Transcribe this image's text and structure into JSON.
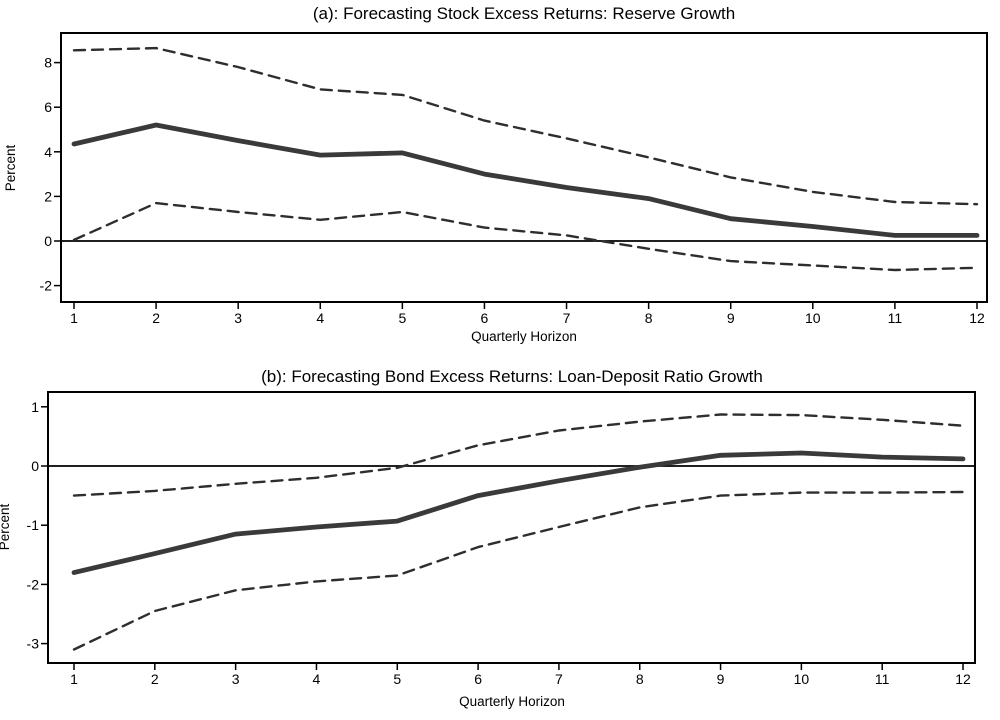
{
  "figure_background": "#ffffff",
  "colors": {
    "solid_line": "#3a3a3a",
    "dashed_line": "#2e2e2e",
    "axis": "#000000",
    "background": "#ffffff"
  },
  "chart_data": [
    {
      "type": "line",
      "title": "(a): Forecasting Stock Excess Returns: Reserve Growth",
      "xlabel": "Quarterly Horizon",
      "ylabel": "Percent",
      "x": [
        1,
        2,
        3,
        4,
        5,
        6,
        7,
        8,
        9,
        10,
        11,
        12
      ],
      "xtick_labels": [
        "1",
        "2",
        "3",
        "4",
        "5",
        "6",
        "7",
        "8",
        "9",
        "10",
        "11",
        "12"
      ],
      "yticks": [
        -2,
        0,
        2,
        4,
        6,
        8
      ],
      "xlim": [
        0.84,
        12.12
      ],
      "ylim": [
        -2.75,
        9.35
      ],
      "grid": false,
      "legend": "none",
      "zero_line": true,
      "series": [
        {
          "name": "point-estimate",
          "style": "solid",
          "values": [
            4.35,
            5.2,
            4.5,
            3.85,
            3.95,
            3.0,
            2.4,
            1.9,
            1.0,
            0.65,
            0.25,
            0.25
          ]
        },
        {
          "name": "upper-confidence-band",
          "style": "dashed",
          "values": [
            8.55,
            8.65,
            7.8,
            6.8,
            6.55,
            5.4,
            4.6,
            3.75,
            2.85,
            2.2,
            1.75,
            1.65
          ]
        },
        {
          "name": "lower-confidence-band",
          "style": "dashed",
          "values": [
            0.05,
            1.7,
            1.3,
            0.95,
            1.3,
            0.6,
            0.25,
            -0.35,
            -0.9,
            -1.1,
            -1.3,
            -1.2
          ]
        }
      ]
    },
    {
      "type": "line",
      "title": "(b): Forecasting Bond Excess Returns: Loan-Deposit Ratio Growth",
      "xlabel": "Quarterly Horizon",
      "ylabel": "Percent",
      "x": [
        1,
        2,
        3,
        4,
        5,
        6,
        7,
        8,
        9,
        10,
        11,
        12
      ],
      "xtick_labels": [
        "1",
        "2",
        "3",
        "4",
        "5",
        "6",
        "7",
        "8",
        "9",
        "10",
        "11",
        "12"
      ],
      "yticks": [
        -3,
        -2,
        -1,
        0,
        1
      ],
      "xlim": [
        0.68,
        12.15
      ],
      "ylim": [
        -3.33,
        1.25
      ],
      "grid": false,
      "legend": "none",
      "zero_line": true,
      "series": [
        {
          "name": "point-estimate",
          "style": "solid",
          "values": [
            -1.8,
            -1.48,
            -1.15,
            -1.03,
            -0.93,
            -0.5,
            -0.25,
            -0.02,
            0.18,
            0.22,
            0.15,
            0.12
          ]
        },
        {
          "name": "upper-confidence-band",
          "style": "dashed",
          "values": [
            -0.5,
            -0.42,
            -0.3,
            -0.2,
            -0.03,
            0.35,
            0.6,
            0.75,
            0.87,
            0.86,
            0.78,
            0.68
          ]
        },
        {
          "name": "lower-confidence-band",
          "style": "dashed",
          "values": [
            -3.1,
            -2.45,
            -2.1,
            -1.95,
            -1.85,
            -1.37,
            -1.03,
            -0.7,
            -0.5,
            -0.45,
            -0.45,
            -0.44
          ]
        }
      ]
    }
  ]
}
